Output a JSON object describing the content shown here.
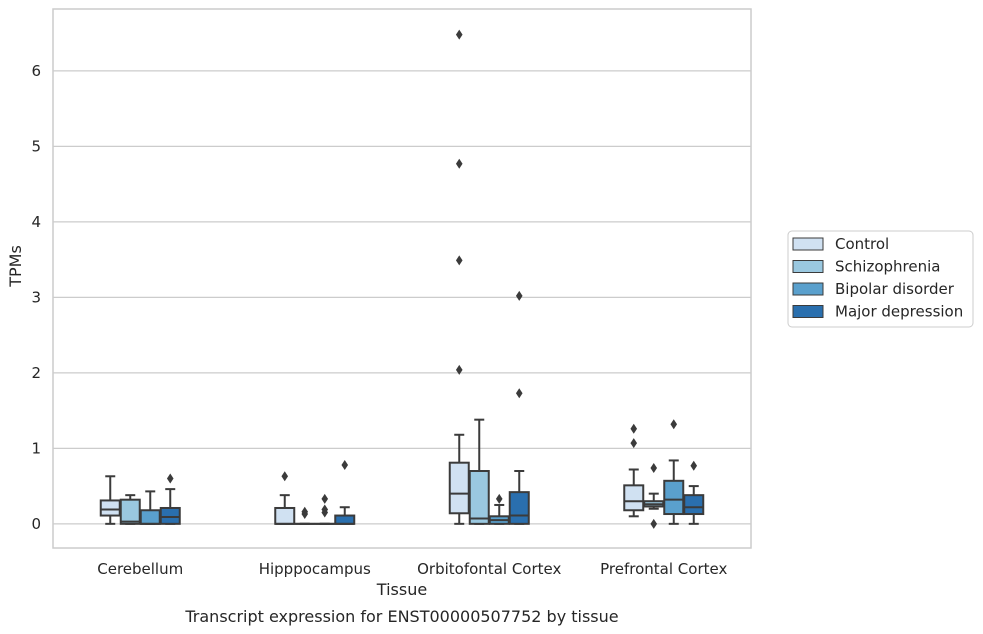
{
  "chart_data": {
    "type": "box",
    "caption": "Transcript expression for ENST00000507752 by tissue",
    "xlabel": "Tissue",
    "ylabel": "TPMs",
    "ylim": [
      -0.32,
      6.82
    ],
    "yticks": [
      0,
      1,
      2,
      3,
      4,
      5,
      6
    ],
    "grid": "horizontal",
    "legend_position": "right",
    "categories": [
      "Cerebellum",
      "Hipppocampus",
      "Orbitofontal Cortex",
      "Prefrontal Cortex"
    ],
    "series": [
      {
        "name": "Control",
        "color": "#d0e1f2",
        "boxes": [
          {
            "whislo": 0.0,
            "q1": 0.11,
            "med": 0.19,
            "q3": 0.31,
            "whishi": 0.63,
            "fliers": []
          },
          {
            "whislo": 0.0,
            "q1": 0.0,
            "med": 0.0,
            "q3": 0.21,
            "whishi": 0.38,
            "fliers": [
              0.63
            ]
          },
          {
            "whislo": 0.0,
            "q1": 0.14,
            "med": 0.4,
            "q3": 0.81,
            "whishi": 1.18,
            "fliers": [
              2.04,
              3.49,
              4.77,
              6.48
            ]
          },
          {
            "whislo": 0.1,
            "q1": 0.18,
            "med": 0.3,
            "q3": 0.51,
            "whishi": 0.72,
            "fliers": [
              1.07,
              1.26
            ]
          }
        ]
      },
      {
        "name": "Schizophrenia",
        "color": "#9ac8e0",
        "boxes": [
          {
            "whislo": 0.0,
            "q1": 0.0,
            "med": 0.03,
            "q3": 0.32,
            "whishi": 0.38,
            "fliers": []
          },
          {
            "whislo": 0.0,
            "q1": 0.0,
            "med": 0.0,
            "q3": 0.0,
            "whishi": 0.0,
            "fliers": [
              0.13,
              0.16
            ]
          },
          {
            "whislo": 0.0,
            "q1": 0.0,
            "med": 0.07,
            "q3": 0.7,
            "whishi": 1.38,
            "fliers": []
          },
          {
            "whislo": 0.2,
            "q1": 0.23,
            "med": 0.26,
            "q3": 0.3,
            "whishi": 0.4,
            "fliers": [
              0.0,
              0.74
            ]
          }
        ]
      },
      {
        "name": "Bipolar disorder",
        "color": "#5aa0cd",
        "boxes": [
          {
            "whislo": 0.0,
            "q1": 0.0,
            "med": 0.0,
            "q3": 0.18,
            "whishi": 0.43,
            "fliers": []
          },
          {
            "whislo": 0.0,
            "q1": 0.0,
            "med": 0.0,
            "q3": 0.0,
            "whishi": 0.0,
            "fliers": [
              0.15,
              0.19,
              0.33
            ]
          },
          {
            "whislo": 0.0,
            "q1": 0.0,
            "med": 0.05,
            "q3": 0.1,
            "whishi": 0.25,
            "fliers": [
              0.33
            ]
          },
          {
            "whislo": 0.0,
            "q1": 0.13,
            "med": 0.32,
            "q3": 0.57,
            "whishi": 0.84,
            "fliers": [
              1.32
            ]
          }
        ]
      },
      {
        "name": "Major depression",
        "color": "#2a6fae",
        "boxes": [
          {
            "whislo": 0.0,
            "q1": 0.0,
            "med": 0.09,
            "q3": 0.21,
            "whishi": 0.46,
            "fliers": [
              0.6
            ]
          },
          {
            "whislo": 0.0,
            "q1": 0.0,
            "med": 0.0,
            "q3": 0.11,
            "whishi": 0.22,
            "fliers": [
              0.78
            ]
          },
          {
            "whislo": 0.0,
            "q1": 0.0,
            "med": 0.11,
            "q3": 0.42,
            "whishi": 0.7,
            "fliers": [
              1.73,
              3.02
            ]
          },
          {
            "whislo": 0.0,
            "q1": 0.13,
            "med": 0.22,
            "q3": 0.38,
            "whishi": 0.5,
            "fliers": [
              0.77
            ]
          }
        ]
      }
    ]
  }
}
